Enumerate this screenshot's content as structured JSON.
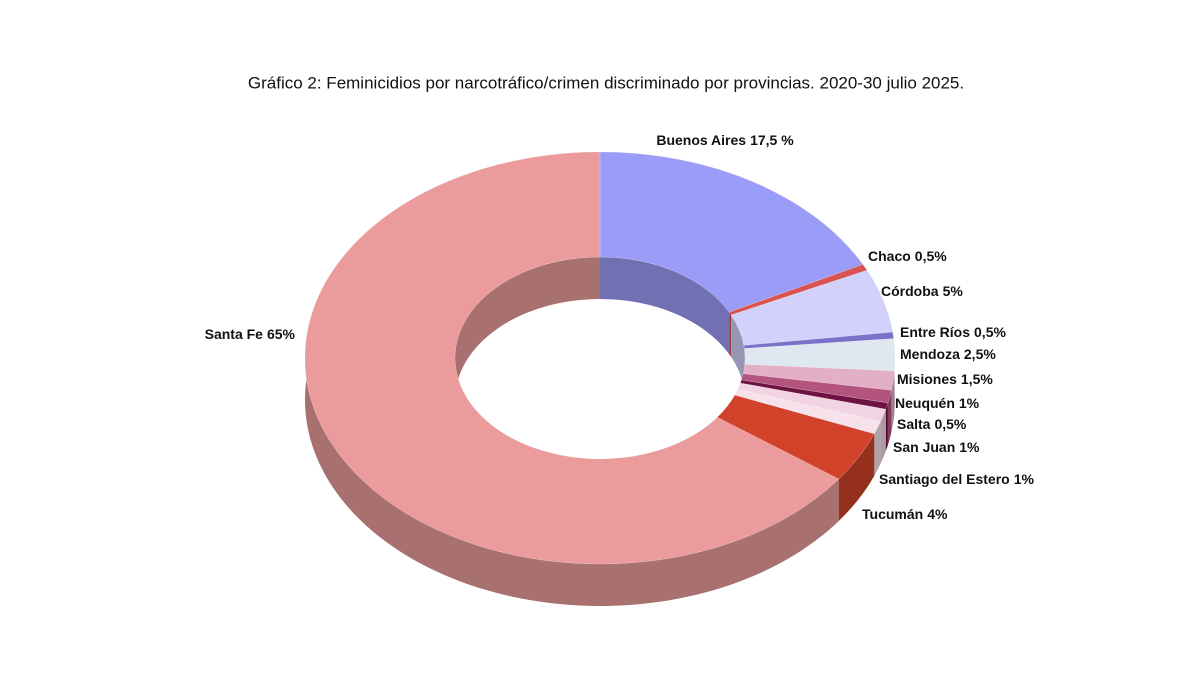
{
  "chart_data": {
    "type": "donut3d",
    "title": "Gráfico 2: Feminicidios por narcotráfico/crimen discriminado por provincias. 2020-30 julio 2025.",
    "categories": [
      "Buenos Aires",
      "Chaco",
      "Córdoba",
      "Entre Ríos",
      "Mendoza",
      "Misiones",
      "Neuquén",
      "Salta",
      "San Juan",
      "Santiago del Estero",
      "Tucumán",
      "Santa Fe"
    ],
    "values": [
      17.5,
      0.5,
      5,
      0.5,
      2.5,
      1.5,
      1,
      0.5,
      1,
      1,
      4,
      65
    ],
    "value_labels": [
      "17,5 %",
      "0,5%",
      "5%",
      "0,5%",
      "2,5%",
      "1,5%",
      "1%",
      "0,5%",
      "1%",
      "1%",
      "4%",
      "65%"
    ],
    "colors": [
      "#9b9cf8",
      "#d9534f",
      "#d2d1fb",
      "#7a72c8",
      "#dfe7f1",
      "#e3afc5",
      "#b3537e",
      "#6d1242",
      "#f2d3e2",
      "#f7e1ea",
      "#d0432a",
      "#eb9b9b"
    ]
  }
}
